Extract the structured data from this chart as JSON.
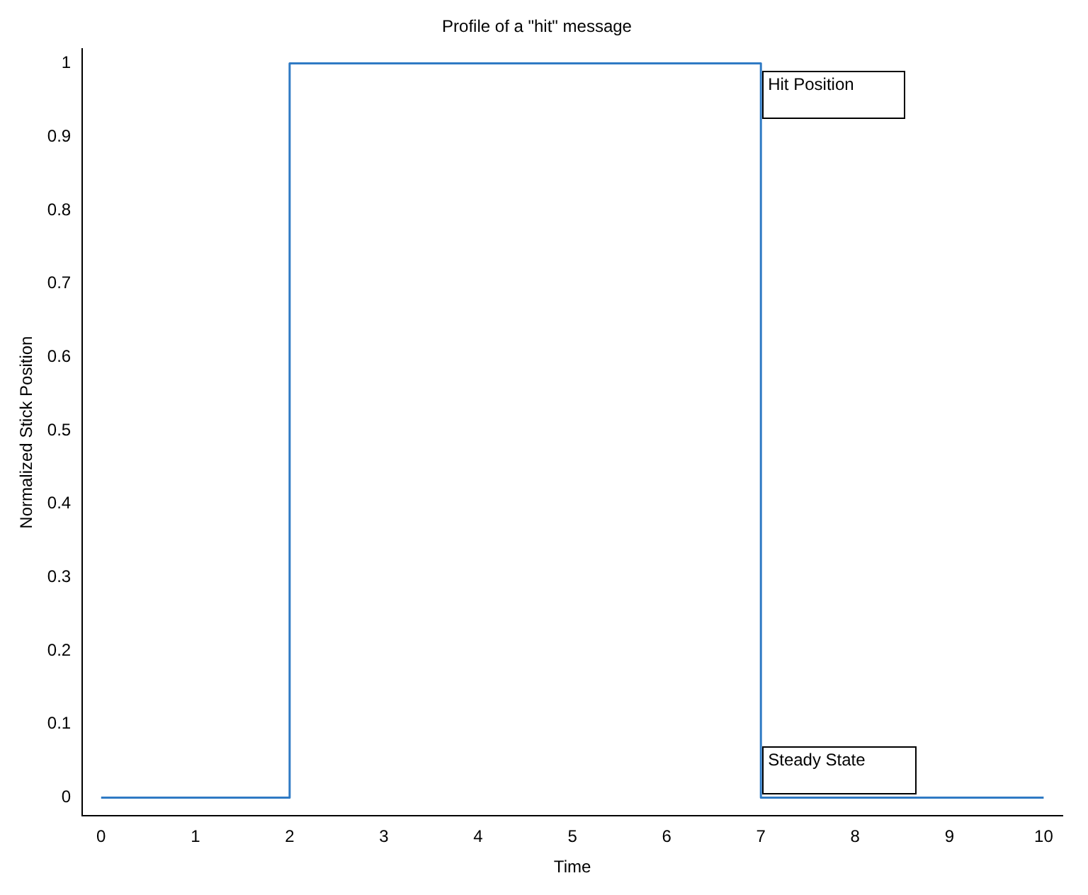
{
  "chart_data": {
    "type": "line",
    "title": "Profile of a \"hit\" message",
    "xlabel": "Time",
    "ylabel": "Normalized Stick Position",
    "x": [
      0,
      2,
      2,
      7,
      7,
      10
    ],
    "values": [
      0,
      0,
      1,
      1,
      0,
      0
    ],
    "color": "#2f7ac4",
    "marker": "none",
    "line_style": "solid",
    "grid": false,
    "legend": false,
    "xlim": [
      -0.2,
      10.2
    ],
    "ylim": [
      -0.025,
      1.02
    ],
    "xticks": [
      0,
      1,
      2,
      3,
      4,
      5,
      6,
      7,
      8,
      9,
      10
    ],
    "yticks": [
      0,
      0.1,
      0.2,
      0.3,
      0.4,
      0.5,
      0.6,
      0.7,
      0.8,
      0.9,
      1
    ],
    "annotations": [
      {
        "text": "Hit Position",
        "x": 7,
        "y": 0.99
      },
      {
        "text": "Steady State",
        "x": 7,
        "y": 0.07
      }
    ]
  }
}
